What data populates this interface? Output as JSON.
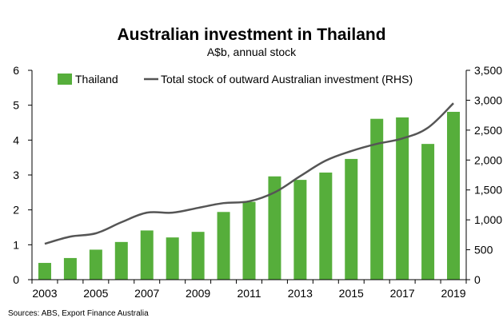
{
  "title": "Australian investment in Thailand",
  "subtitle": "A$b, annual stock",
  "source": "Sources: ABS, Export Finance Australia",
  "colors": {
    "bar": "#56ae3b",
    "line": "#555555",
    "axis": "#000000"
  },
  "chart_data": {
    "type": "bar",
    "categories": [
      "2003",
      "2004",
      "2005",
      "2006",
      "2007",
      "2008",
      "2009",
      "2010",
      "2011",
      "2012",
      "2013",
      "2014",
      "2015",
      "2016",
      "2017",
      "2018",
      "2019"
    ],
    "series": [
      {
        "name": "Thailand",
        "type": "bar",
        "axis": "left",
        "values": [
          0.48,
          0.62,
          0.86,
          1.08,
          1.41,
          1.21,
          1.37,
          1.94,
          2.23,
          2.96,
          2.86,
          3.07,
          3.46,
          4.61,
          4.65,
          3.89,
          4.81
        ]
      },
      {
        "name": "Total stock of outward Australian investment (RHS)",
        "type": "line",
        "axis": "right",
        "values": [
          600,
          720,
          775,
          960,
          1120,
          1120,
          1200,
          1280,
          1310,
          1460,
          1730,
          1990,
          2150,
          2270,
          2360,
          2540,
          2950
        ]
      }
    ],
    "y_left": {
      "min": 0,
      "max": 6,
      "ticks": [
        "0",
        "1",
        "2",
        "3",
        "4",
        "5",
        "6"
      ]
    },
    "y_right": {
      "min": 0,
      "max": 3500,
      "ticks": [
        "0",
        "500",
        "1,000",
        "1,500",
        "2,000",
        "2,500",
        "3,000",
        "3,500"
      ]
    },
    "x_tick_labels": [
      "2003",
      "2005",
      "2007",
      "2009",
      "2011",
      "2013",
      "2015",
      "2017",
      "2019"
    ],
    "legend": {
      "placement": "top-left"
    },
    "grid": false
  }
}
